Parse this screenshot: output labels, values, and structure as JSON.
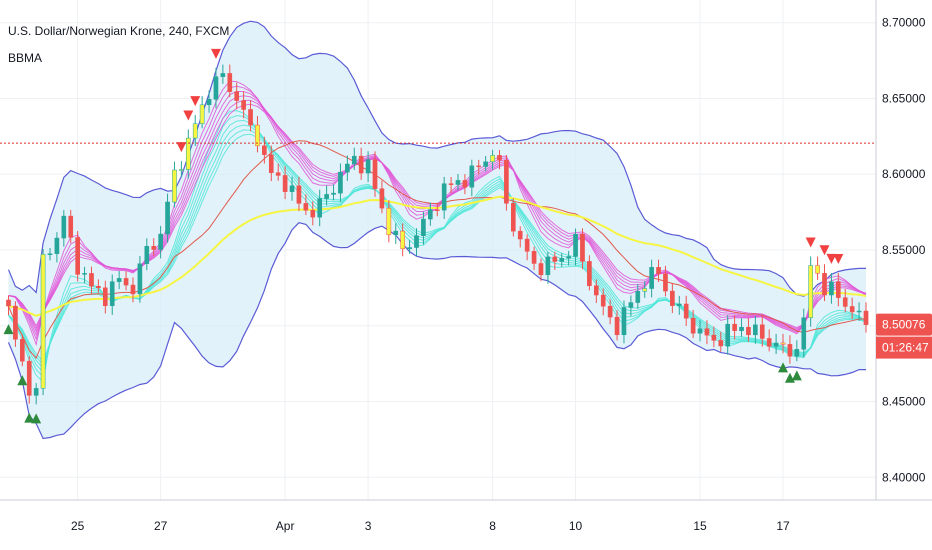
{
  "chart_data": {
    "type": "candlestick",
    "title": "U.S. Dollar/Norwegian Krone, 240, FXCM",
    "indicator": "BBMA",
    "ylim": [
      8.385,
      8.715
    ],
    "y_ticks": [
      8.4,
      8.45,
      8.5,
      8.55,
      8.6,
      8.65,
      8.7
    ],
    "y_tick_labels": [
      "8.40000",
      "8.45000",
      "8.50000",
      "8.55000",
      "8.60000",
      "8.65000",
      "8.70000"
    ],
    "x_tick_labels": [
      "25",
      "27",
      "Apr",
      "3",
      "8",
      "10",
      "15",
      "17"
    ],
    "x_tick_index": [
      10,
      22,
      40,
      52,
      70,
      82,
      100,
      112
    ],
    "bar_count": 125,
    "horizontal_line": 8.6205,
    "price_label": "8.50076",
    "countdown_label": "01:26:47",
    "current_price": 8.50076,
    "colors": {
      "up": "#26a69a",
      "down": "#ef5350",
      "extreme": "#f5f542",
      "bb_band": "#5b5bd6",
      "bb_fill": "#d8eef8",
      "ma_high": "#e056d8",
      "ma_low": "#4fe6d8",
      "ema50": "#f5f542",
      "basis": "#e05a4e",
      "price_tag": "#ef5350",
      "h_line": "#d32f2f",
      "grid": "#eef0f3",
      "arrow_up": "#2e8b3e",
      "arrow_down": "#f04040"
    },
    "close_keypoints": [
      [
        0,
        8.51
      ],
      [
        1,
        8.49
      ],
      [
        2,
        8.475
      ],
      [
        3,
        8.46
      ],
      [
        4,
        8.455
      ],
      [
        5,
        8.545
      ],
      [
        6,
        8.55
      ],
      [
        8,
        8.57
      ],
      [
        10,
        8.54
      ],
      [
        12,
        8.525
      ],
      [
        14,
        8.52
      ],
      [
        16,
        8.53
      ],
      [
        18,
        8.525
      ],
      [
        20,
        8.55
      ],
      [
        22,
        8.56
      ],
      [
        24,
        8.6
      ],
      [
        26,
        8.62
      ],
      [
        28,
        8.645
      ],
      [
        29,
        8.655
      ],
      [
        31,
        8.665
      ],
      [
        33,
        8.65
      ],
      [
        35,
        8.63
      ],
      [
        36,
        8.625
      ],
      [
        37,
        8.61
      ],
      [
        38,
        8.6
      ],
      [
        40,
        8.595
      ],
      [
        42,
        8.58
      ],
      [
        44,
        8.575
      ],
      [
        46,
        8.585
      ],
      [
        48,
        8.6
      ],
      [
        50,
        8.61
      ],
      [
        52,
        8.605
      ],
      [
        53,
        8.59
      ],
      [
        55,
        8.565
      ],
      [
        57,
        8.55
      ],
      [
        59,
        8.56
      ],
      [
        61,
        8.575
      ],
      [
        63,
        8.59
      ],
      [
        65,
        8.595
      ],
      [
        67,
        8.6
      ],
      [
        69,
        8.61
      ],
      [
        70,
        8.615
      ],
      [
        71,
        8.605
      ],
      [
        72,
        8.58
      ],
      [
        74,
        8.555
      ],
      [
        76,
        8.54
      ],
      [
        78,
        8.54
      ],
      [
        80,
        8.545
      ],
      [
        82,
        8.555
      ],
      [
        84,
        8.53
      ],
      [
        86,
        8.51
      ],
      [
        88,
        8.5
      ],
      [
        90,
        8.515
      ],
      [
        92,
        8.53
      ],
      [
        94,
        8.535
      ],
      [
        96,
        8.515
      ],
      [
        98,
        8.505
      ],
      [
        100,
        8.495
      ],
      [
        102,
        8.49
      ],
      [
        104,
        8.495
      ],
      [
        106,
        8.5
      ],
      [
        108,
        8.495
      ],
      [
        110,
        8.49
      ],
      [
        112,
        8.485
      ],
      [
        113,
        8.48
      ],
      [
        114,
        8.49
      ],
      [
        115,
        8.5
      ],
      [
        116,
        8.54
      ],
      [
        117,
        8.535
      ],
      [
        118,
        8.525
      ],
      [
        120,
        8.52
      ],
      [
        122,
        8.51
      ],
      [
        124,
        8.5008
      ]
    ],
    "up_arrow_bars": [
      0,
      2,
      3,
      4,
      112,
      113,
      114
    ],
    "down_arrow_bars": [
      25,
      26,
      27,
      30,
      116,
      118,
      119,
      120
    ]
  }
}
